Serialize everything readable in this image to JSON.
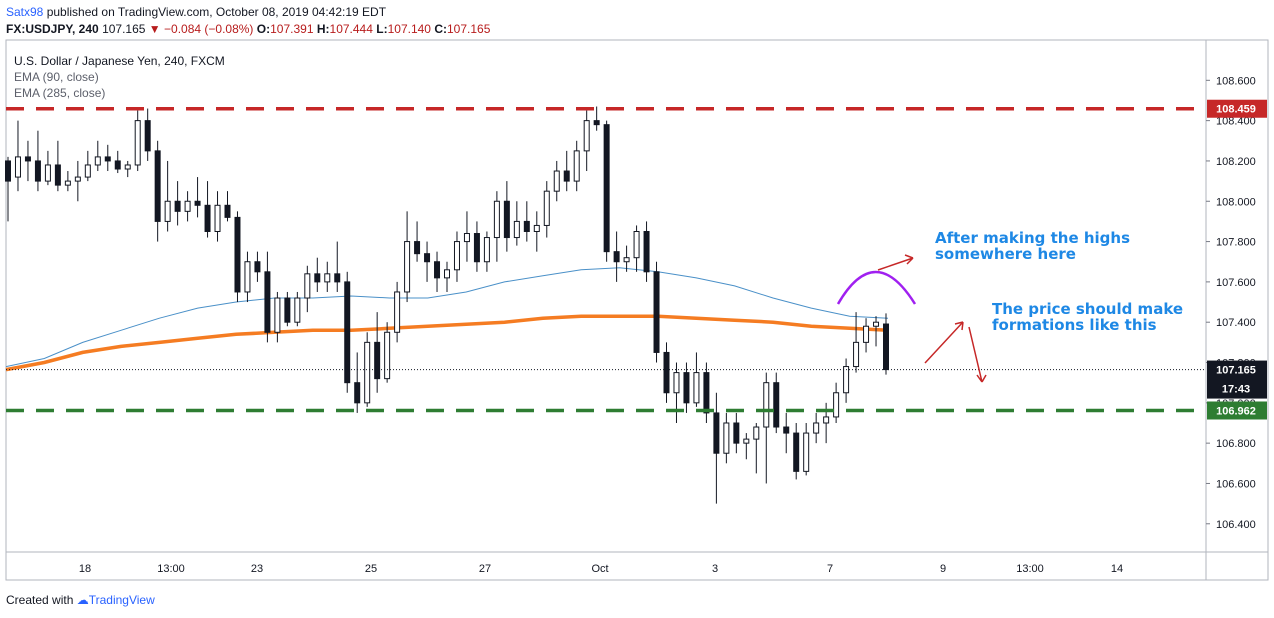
{
  "header": {
    "user": "Satx98",
    "published": "published on TradingView.com, October 08, 2019 04:42:19 EDT",
    "symbol": "FX:USDJPY, 240",
    "last": "107.165",
    "change": "−0.084 (−0.08%)",
    "open_label": "O:",
    "open": "107.391",
    "high_label": "H:",
    "high": "107.444",
    "low_label": "L:",
    "low": "107.140",
    "close_label": "C:",
    "close": "107.165"
  },
  "legend": {
    "instrument": "U.S. Dollar / Japanese Yen, 240, FXCM",
    "ema1": "EMA (90, close)",
    "ema2": "EMA (285, close)"
  },
  "annotations": {
    "text1": "After making the highs\nsomewhere here",
    "text2": "The price should make\nformations like this"
  },
  "footer": {
    "created": "Created with",
    "brand": "TradingView"
  },
  "colors": {
    "resistance": "#c62828",
    "support": "#2e7d32",
    "ema90": "#4a90c8",
    "ema285": "#f57c22",
    "candle": "#131722",
    "annotation_text": "#1e88e5",
    "arc": "#a020f0",
    "arrow": "#c62828"
  },
  "chart_data": {
    "type": "candlestick",
    "y_axis": {
      "ticks": [
        106.4,
        106.6,
        106.8,
        107.0,
        107.2,
        107.4,
        107.6,
        107.8,
        108.0,
        108.2,
        108.4,
        108.6
      ],
      "tick_labels": [
        "106.400",
        "106.600",
        "106.800",
        "107.000",
        "107.200",
        "107.400",
        "107.600",
        "107.800",
        "108.000",
        "108.200",
        "108.400",
        "108.600"
      ],
      "range": [
        106.26,
        108.8
      ]
    },
    "x_axis": {
      "labels": [
        "18",
        "13:00",
        "23",
        "25",
        "27",
        "Oct",
        "3",
        "7",
        "9",
        "13:00",
        "14"
      ]
    },
    "levels": [
      {
        "name": "resistance",
        "value": 108.459,
        "label": "108.459"
      },
      {
        "name": "support",
        "value": 106.962,
        "label": "106.962"
      }
    ],
    "last_price": {
      "value": 107.165,
      "label": "107.165",
      "countdown": "17:43"
    },
    "candles": [
      [
        108.2,
        108.22,
        107.9,
        108.1
      ],
      [
        108.12,
        108.4,
        108.05,
        108.22
      ],
      [
        108.22,
        108.3,
        108.1,
        108.2
      ],
      [
        108.2,
        108.35,
        108.05,
        108.1
      ],
      [
        108.1,
        108.25,
        108.08,
        108.18
      ],
      [
        108.18,
        108.3,
        108.05,
        108.08
      ],
      [
        108.08,
        108.15,
        108.05,
        108.1
      ],
      [
        108.1,
        108.2,
        108.0,
        108.12
      ],
      [
        108.12,
        108.25,
        108.1,
        108.18
      ],
      [
        108.18,
        108.3,
        108.15,
        108.22
      ],
      [
        108.22,
        108.28,
        108.15,
        108.2
      ],
      [
        108.2,
        108.25,
        108.14,
        108.16
      ],
      [
        108.16,
        108.2,
        108.12,
        108.18
      ],
      [
        108.18,
        108.45,
        108.15,
        108.4
      ],
      [
        108.4,
        108.46,
        108.2,
        108.25
      ],
      [
        108.25,
        108.3,
        107.8,
        107.9
      ],
      [
        107.9,
        108.2,
        107.85,
        108.0
      ],
      [
        108.0,
        108.1,
        107.88,
        107.95
      ],
      [
        107.95,
        108.05,
        107.9,
        108.0
      ],
      [
        108.0,
        108.12,
        107.92,
        107.98
      ],
      [
        107.98,
        108.1,
        107.82,
        107.85
      ],
      [
        107.85,
        108.05,
        107.8,
        107.98
      ],
      [
        107.98,
        108.05,
        107.9,
        107.92
      ],
      [
        107.92,
        107.95,
        107.5,
        107.55
      ],
      [
        107.55,
        107.75,
        107.5,
        107.7
      ],
      [
        107.7,
        107.75,
        107.6,
        107.65
      ],
      [
        107.65,
        107.75,
        107.3,
        107.35
      ],
      [
        107.35,
        107.55,
        107.3,
        107.52
      ],
      [
        107.52,
        107.55,
        107.38,
        107.4
      ],
      [
        107.4,
        107.55,
        107.38,
        107.52
      ],
      [
        107.52,
        107.68,
        107.45,
        107.64
      ],
      [
        107.64,
        107.72,
        107.55,
        107.6
      ],
      [
        107.6,
        107.7,
        107.55,
        107.64
      ],
      [
        107.64,
        107.8,
        107.55,
        107.6
      ],
      [
        107.6,
        107.65,
        107.05,
        107.1
      ],
      [
        107.1,
        107.25,
        106.95,
        107.0
      ],
      [
        107.0,
        107.35,
        106.98,
        107.3
      ],
      [
        107.3,
        107.45,
        107.05,
        107.12
      ],
      [
        107.12,
        107.4,
        107.1,
        107.35
      ],
      [
        107.35,
        107.6,
        107.3,
        107.55
      ],
      [
        107.55,
        107.95,
        107.5,
        107.8
      ],
      [
        107.8,
        107.9,
        107.7,
        107.74
      ],
      [
        107.74,
        107.8,
        107.6,
        107.7
      ],
      [
        107.7,
        107.75,
        107.55,
        107.62
      ],
      [
        107.62,
        107.7,
        107.55,
        107.66
      ],
      [
        107.66,
        107.85,
        107.6,
        107.8
      ],
      [
        107.8,
        107.95,
        107.7,
        107.84
      ],
      [
        107.84,
        107.9,
        107.65,
        107.7
      ],
      [
        107.7,
        107.85,
        107.65,
        107.82
      ],
      [
        107.82,
        108.05,
        107.7,
        108.0
      ],
      [
        108.0,
        108.1,
        107.75,
        107.82
      ],
      [
        107.82,
        108.0,
        107.78,
        107.9
      ],
      [
        107.9,
        108.0,
        107.8,
        107.85
      ],
      [
        107.85,
        107.95,
        107.75,
        107.88
      ],
      [
        107.88,
        108.1,
        107.82,
        108.05
      ],
      [
        108.05,
        108.2,
        108.0,
        108.15
      ],
      [
        108.15,
        108.25,
        108.05,
        108.1
      ],
      [
        108.1,
        108.3,
        108.05,
        108.25
      ],
      [
        108.25,
        108.45,
        108.15,
        108.4
      ],
      [
        108.4,
        108.47,
        108.35,
        108.38
      ],
      [
        108.38,
        108.4,
        107.7,
        107.75
      ],
      [
        107.75,
        107.85,
        107.6,
        107.7
      ],
      [
        107.7,
        107.78,
        107.65,
        107.72
      ],
      [
        107.72,
        107.88,
        107.65,
        107.85
      ],
      [
        107.85,
        107.9,
        107.6,
        107.65
      ],
      [
        107.65,
        107.7,
        107.2,
        107.25
      ],
      [
        107.25,
        107.3,
        107.0,
        107.05
      ],
      [
        107.05,
        107.2,
        106.9,
        107.15
      ],
      [
        107.15,
        107.2,
        106.95,
        107.0
      ],
      [
        107.0,
        107.25,
        106.98,
        107.15
      ],
      [
        107.15,
        107.2,
        106.9,
        106.95
      ],
      [
        106.95,
        107.05,
        106.5,
        106.75
      ],
      [
        106.75,
        106.95,
        106.7,
        106.9
      ],
      [
        106.9,
        106.95,
        106.75,
        106.8
      ],
      [
        106.8,
        106.85,
        106.72,
        106.82
      ],
      [
        106.82,
        106.9,
        106.65,
        106.88
      ],
      [
        106.88,
        107.15,
        106.6,
        107.1
      ],
      [
        107.1,
        107.15,
        106.85,
        106.88
      ],
      [
        106.88,
        106.95,
        106.75,
        106.85
      ],
      [
        106.85,
        106.9,
        106.62,
        106.66
      ],
      [
        106.66,
        106.9,
        106.64,
        106.85
      ],
      [
        106.85,
        106.95,
        106.8,
        106.9
      ],
      [
        106.9,
        107.0,
        106.8,
        106.93
      ],
      [
        106.93,
        107.1,
        106.9,
        107.05
      ],
      [
        107.05,
        107.22,
        107.0,
        107.18
      ],
      [
        107.18,
        107.45,
        107.15,
        107.3
      ],
      [
        107.3,
        107.42,
        107.25,
        107.38
      ],
      [
        107.38,
        107.43,
        107.28,
        107.4
      ],
      [
        107.391,
        107.444,
        107.14,
        107.165
      ]
    ],
    "ema90": [
      107.18,
      107.22,
      107.3,
      107.36,
      107.42,
      107.47,
      107.5,
      107.52,
      107.52,
      107.53,
      107.52,
      107.52,
      107.55,
      107.6,
      107.63,
      107.66,
      107.67,
      107.65,
      107.62,
      107.58,
      107.52,
      107.47,
      107.43,
      107.42
    ],
    "ema285": [
      107.165,
      107.2,
      107.25,
      107.28,
      107.3,
      107.32,
      107.34,
      107.35,
      107.36,
      107.36,
      107.37,
      107.38,
      107.39,
      107.4,
      107.42,
      107.43,
      107.43,
      107.43,
      107.42,
      107.41,
      107.4,
      107.38,
      107.37,
      107.36
    ]
  }
}
